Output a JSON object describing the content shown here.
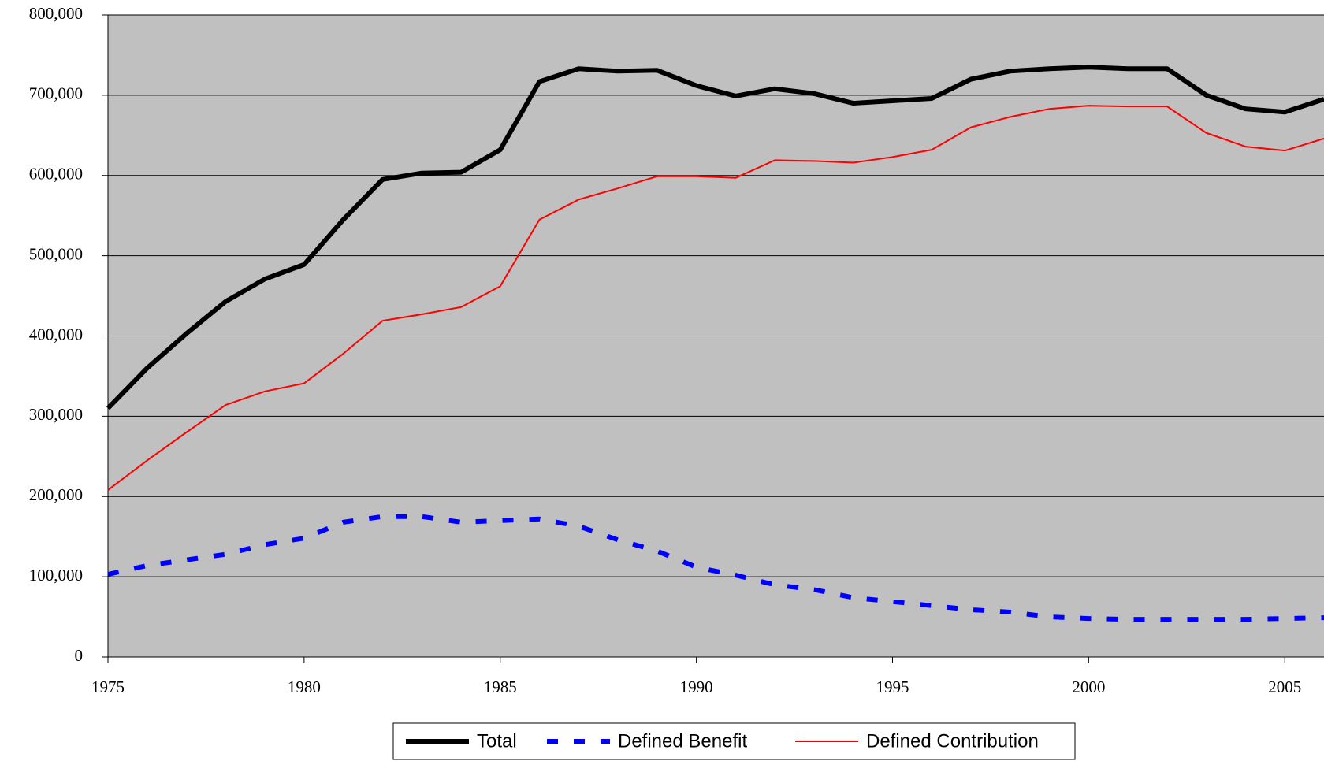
{
  "chart_data": {
    "type": "line",
    "x": [
      1975,
      1976,
      1977,
      1978,
      1979,
      1980,
      1981,
      1982,
      1983,
      1984,
      1985,
      1986,
      1987,
      1988,
      1989,
      1990,
      1991,
      1992,
      1993,
      1994,
      1995,
      1996,
      1997,
      1998,
      1999,
      2000,
      2001,
      2002,
      2003,
      2004,
      2005,
      2006
    ],
    "series": [
      {
        "name": "Total",
        "color": "#000000",
        "values": [
          310000,
          360000,
          403000,
          443000,
          471000,
          489000,
          545000,
          595000,
          603000,
          604000,
          632000,
          717000,
          733000,
          730000,
          731000,
          712000,
          699000,
          708000,
          702000,
          690000,
          693000,
          696000,
          720000,
          730000,
          733000,
          735000,
          733000,
          733000,
          700000,
          683000,
          679000,
          695000
        ]
      },
      {
        "name": "Defined Benefit",
        "color": "#0000ff",
        "values": [
          103000,
          114000,
          121000,
          128000,
          140000,
          148000,
          168000,
          175000,
          175000,
          168000,
          170000,
          172000,
          163000,
          146000,
          132000,
          112000,
          102000,
          90000,
          84000,
          74000,
          69000,
          64000,
          59000,
          56000,
          50000,
          48000,
          47000,
          47000,
          47000,
          47000,
          48000,
          49000
        ]
      },
      {
        "name": "Defined Contribution",
        "color": "#ff0000",
        "values": [
          208000,
          245000,
          280000,
          314000,
          331000,
          341000,
          378000,
          419000,
          427000,
          436000,
          462000,
          545000,
          570000,
          584000,
          599000,
          599000,
          597000,
          619000,
          618000,
          616000,
          623000,
          632000,
          660000,
          673000,
          683000,
          687000,
          686000,
          686000,
          653000,
          636000,
          631000,
          646000
        ]
      }
    ],
    "xlim": [
      1975,
      2006
    ],
    "xticks": [
      1975,
      1980,
      1985,
      1990,
      1995,
      2000,
      2005
    ],
    "ylim": [
      0,
      800000
    ],
    "yticks": [
      0,
      {
        "value": 100000,
        "label": "100,000"
      },
      {
        "value": 200000,
        "label": "200,000"
      },
      {
        "value": 300000,
        "label": "300,000"
      },
      {
        "value": 400000,
        "label": "400,000"
      },
      {
        "value": 500000,
        "label": "500,000"
      },
      {
        "value": 600000,
        "label": "600,000"
      },
      {
        "value": 700000,
        "label": "700,000"
      },
      {
        "value": 800000,
        "label": "800,000"
      }
    ],
    "grid": true,
    "legend": "bottom"
  }
}
